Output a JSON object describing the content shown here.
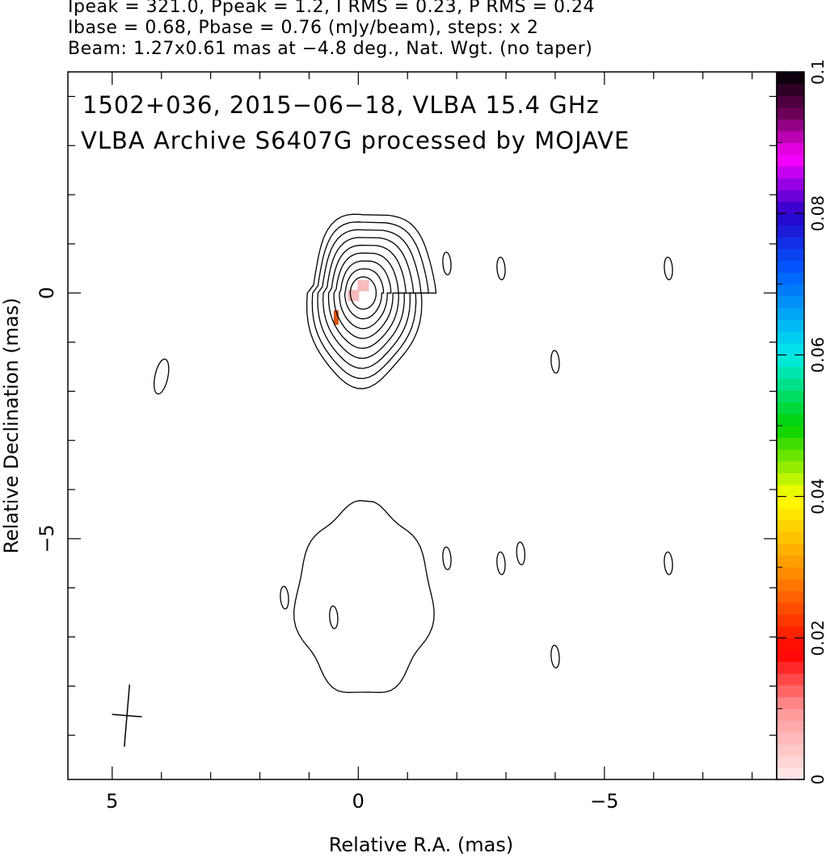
{
  "header": {
    "line1": "Ipeak = 321.0, Ppeak = 1.2, I RMS = 0.23, P RMS = 0.24",
    "line2": "Ibase = 0.68, Pbase = 0.76 (mJy/beam), steps: x 2",
    "line3": "Beam: 1.27x0.61 mas at −4.8 deg., Nat. Wgt. (no taper)"
  },
  "annotation": {
    "line1": "1502+036, 2015−06−18, VLBA 15.4 GHz",
    "line2": "VLBA Archive S6407G processed by MOJAVE"
  },
  "chart_data": {
    "type": "heatmap",
    "xlabel": "Relative R.A. (mas)",
    "ylabel": "Relative Declination (mas)",
    "xlim": [
      5.9,
      -8.5
    ],
    "ylim": [
      -9.9,
      4.5
    ],
    "x_ticks": [
      {
        "value": 5,
        "label": "5"
      },
      {
        "value": 0,
        "label": "0"
      },
      {
        "value": -5,
        "label": "−5"
      }
    ],
    "y_ticks": [
      {
        "value": 0,
        "label": "0"
      },
      {
        "value": -5,
        "label": "−5"
      }
    ],
    "colorbar": {
      "min": 0,
      "max": 0.1,
      "ticks": [
        {
          "value": 0,
          "label": "0"
        },
        {
          "value": 0.02,
          "label": "0.02"
        },
        {
          "value": 0.04,
          "label": "0.04"
        },
        {
          "value": 0.06,
          "label": "0.06"
        },
        {
          "value": 0.08,
          "label": "0.08"
        },
        {
          "value": 0.1,
          "label": "0.1"
        }
      ]
    },
    "beam": {
      "major_mas": 1.27,
      "minor_mas": 0.61,
      "pa_deg": -4.8
    },
    "core_contours": {
      "center": [
        -0.1,
        0.0
      ],
      "levels": 9
    },
    "components": [
      {
        "x": 4.0,
        "y": -1.7
      },
      {
        "x": -1.8,
        "y": 0.6
      },
      {
        "x": -2.9,
        "y": 0.5
      },
      {
        "x": -6.3,
        "y": 0.5
      },
      {
        "x": -4.0,
        "y": -1.4
      },
      {
        "x": -1.8,
        "y": -5.4
      },
      {
        "x": -2.9,
        "y": -5.5
      },
      {
        "x": -3.3,
        "y": -5.3
      },
      {
        "x": -6.3,
        "y": -5.5
      },
      {
        "x": 1.5,
        "y": -6.2
      },
      {
        "x": 0.5,
        "y": -6.6
      },
      {
        "x": -4.0,
        "y": -7.4
      }
    ],
    "polarization_pixels": [
      {
        "x": 0.1,
        "y": -0.05,
        "value": 0.005
      },
      {
        "x": -0.1,
        "y": 0.15,
        "value": 0.005
      },
      {
        "x": 0.45,
        "y": -0.5,
        "value": 0.02
      }
    ],
    "colors": {
      "low": "#ffe4e4",
      "mid_orange": "#ff9900",
      "red": "#ff0000",
      "high": "#000000"
    }
  }
}
